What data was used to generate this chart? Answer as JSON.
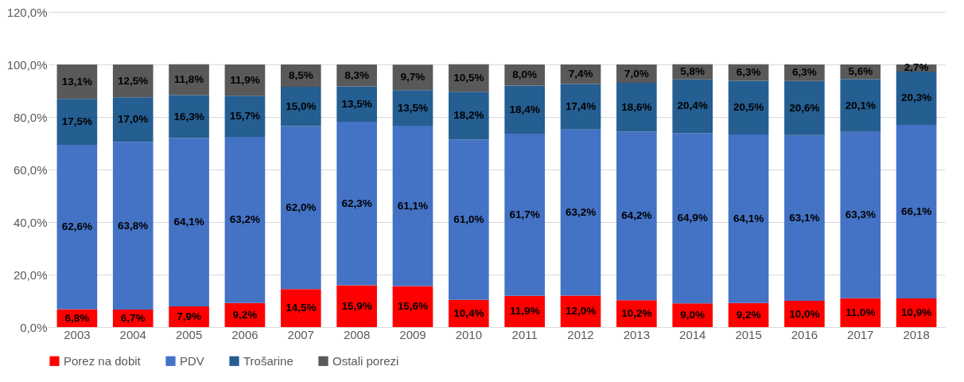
{
  "chart_data": {
    "type": "bar",
    "stacked": true,
    "categories": [
      "2003",
      "2004",
      "2005",
      "2006",
      "2007",
      "2008",
      "2009",
      "2010",
      "2011",
      "2012",
      "2013",
      "2014",
      "2015",
      "2016",
      "2017",
      "2018"
    ],
    "series": [
      {
        "name": "Porez na dobit",
        "color": "#ff0000",
        "values": [
          6.8,
          6.7,
          7.9,
          9.2,
          14.5,
          15.9,
          15.6,
          10.4,
          11.9,
          12.0,
          10.2,
          9.0,
          9.2,
          10.0,
          11.0,
          10.9
        ],
        "value_labels": [
          "6,8%",
          "6,7%",
          "7,9%",
          "9,2%",
          "14,5%",
          "15,9%",
          "15,6%",
          "10,4%",
          "11,9%",
          "12,0%",
          "10,2%",
          "9,0%",
          "9,2%",
          "10,0%",
          "11,0%",
          "10,9%"
        ]
      },
      {
        "name": "PDV",
        "color": "#4472c4",
        "values": [
          62.6,
          63.8,
          64.1,
          63.2,
          62.0,
          62.3,
          61.1,
          61.0,
          61.7,
          63.2,
          64.2,
          64.9,
          64.1,
          63.1,
          63.3,
          66.1
        ],
        "value_labels": [
          "62,6%",
          "63,8%",
          "64,1%",
          "63,2%",
          "62,0%",
          "62,3%",
          "61,1%",
          "61,0%",
          "61,7%",
          "63,2%",
          "64,2%",
          "64,9%",
          "64,1%",
          "63,1%",
          "63,3%",
          "66,1%"
        ]
      },
      {
        "name": "Trošarine",
        "color": "#255e91",
        "values": [
          17.5,
          17.0,
          16.3,
          15.7,
          15.0,
          13.5,
          13.5,
          18.2,
          18.4,
          17.4,
          18.6,
          20.4,
          20.5,
          20.6,
          20.1,
          20.3
        ],
        "value_labels": [
          "17,5%",
          "17,0%",
          "16,3%",
          "15,7%",
          "15,0%",
          "13,5%",
          "13,5%",
          "18,2%",
          "18,4%",
          "17,4%",
          "18,6%",
          "20,4%",
          "20,5%",
          "20,6%",
          "20,1%",
          "20,3%"
        ]
      },
      {
        "name": "Ostali porezi",
        "color": "#595959",
        "values": [
          13.1,
          12.5,
          11.8,
          11.9,
          8.5,
          8.3,
          9.7,
          10.5,
          8.0,
          7.4,
          7.0,
          5.8,
          6.3,
          6.3,
          5.6,
          2.7
        ],
        "value_labels": [
          "13,1%",
          "12,5%",
          "11,8%",
          "11,9%",
          "8,5%",
          "8,3%",
          "9,7%",
          "10,5%",
          "8,0%",
          "7,4%",
          "7,0%",
          "5,8%",
          "6,3%",
          "6,3%",
          "5,6%",
          "2,7%"
        ]
      }
    ],
    "ylim": [
      0,
      120
    ],
    "yticks": [
      {
        "value": 0,
        "label": "0,0%"
      },
      {
        "value": 20,
        "label": "20,0%"
      },
      {
        "value": 40,
        "label": "40,0%"
      },
      {
        "value": 60,
        "label": "60,0%"
      },
      {
        "value": 80,
        "label": "80,0%"
      },
      {
        "value": 100,
        "label": "100,0%"
      },
      {
        "value": 120,
        "label": "120,0%"
      }
    ],
    "grid": "y",
    "legend": "bottom"
  }
}
